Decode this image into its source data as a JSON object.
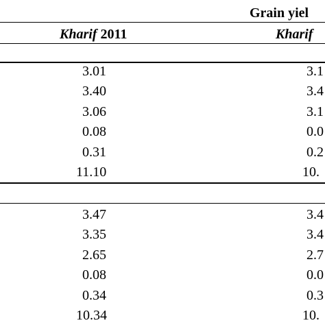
{
  "header": {
    "group_label": "Grain yiel",
    "col1_season": "Kharif",
    "col1_year": " 2011",
    "col2_season": "Kharif"
  },
  "section1": {
    "col1": [
      "3.01",
      "3.40",
      "3.06",
      "0.08",
      "0.31",
      "11.10"
    ],
    "col2": [
      "3.1",
      "3.4",
      "3.1",
      "0.0",
      "0.2",
      "10."
    ]
  },
  "section2": {
    "col1": [
      "3.47",
      "3.35",
      "2.65",
      "0.08",
      "0.34",
      "10.34"
    ],
    "col2": [
      "3.4",
      "3.4",
      "2.7",
      "0.0",
      "0.3",
      "10."
    ]
  }
}
